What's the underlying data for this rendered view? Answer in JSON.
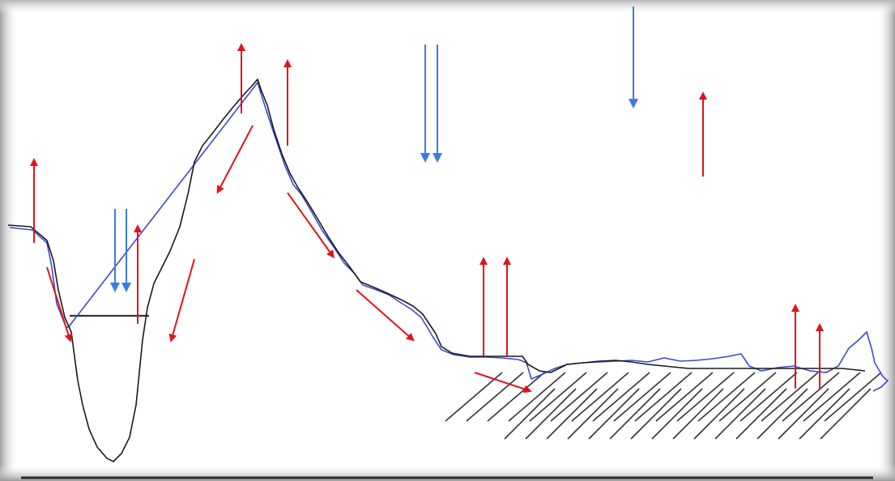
{
  "colors": {
    "frame_gradient_dark": "#9e9e9e",
    "frame_gradient_light": "#f2f2f2",
    "profile_black": "#1a1a1a",
    "profile_blue": "#3b49d6",
    "arrow_red": "#e3121b",
    "arrow_blue": "#3a7be6",
    "hatch": "#333333",
    "base_line": "#2a2a2a"
  },
  "elements": {
    "profile_lines": [
      "black-profile",
      "blue-profile"
    ],
    "arrow_colors": [
      "red",
      "blue"
    ],
    "hatched_region": "ground"
  }
}
